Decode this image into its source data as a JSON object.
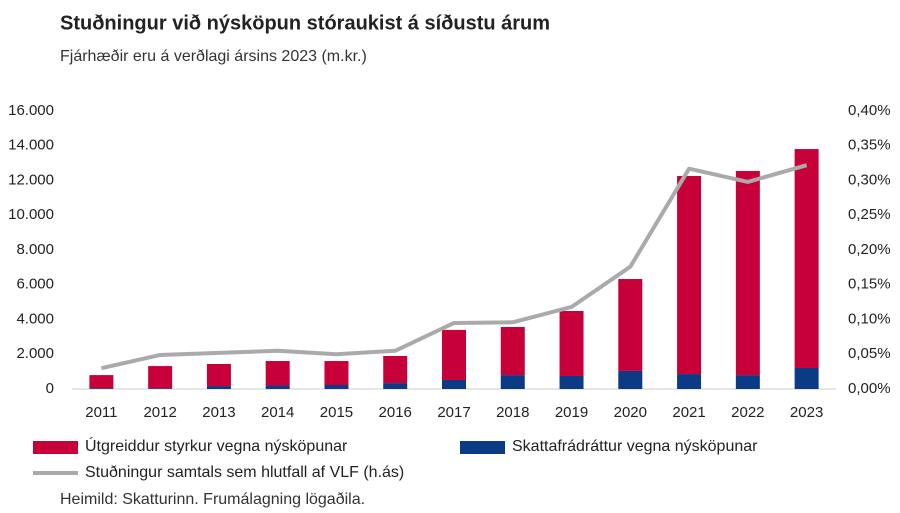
{
  "chart_data": {
    "type": "bar",
    "title": "Stuðningur við nýsköpun stóraukist á síðustu árum",
    "subtitle": "Fjárhæðir eru á verðlagi ársins 2023 (m.kr.)",
    "source": "Heimild: Skatturinn. Frumálagning lögaðila.",
    "stacked": true,
    "categories": [
      "2011",
      "2012",
      "2013",
      "2014",
      "2015",
      "2016",
      "2017",
      "2018",
      "2019",
      "2020",
      "2021",
      "2022",
      "2023"
    ],
    "series": [
      {
        "name": "Útgreiddur styrkur vegna nýsköpunar",
        "type": "bar",
        "color": "#c8003a",
        "values": [
          750,
          1270,
          1270,
          1410,
          1380,
          1560,
          2880,
          2770,
          3740,
          5290,
          11400,
          11750,
          12600
        ]
      },
      {
        "name": "Skattafrádráttur vegna nýsköpunar",
        "type": "bar",
        "color": "#0b3b84",
        "values": [
          50,
          50,
          170,
          200,
          230,
          340,
          520,
          800,
          750,
          1040,
          860,
          800,
          1210
        ]
      },
      {
        "name": "Stuðningur samtals sem hlutfall af VLF (h.ás)",
        "type": "line",
        "axis": "y2",
        "color": "#aaaaaa",
        "values": [
          0.03,
          0.049,
          0.052,
          0.055,
          0.05,
          0.055,
          0.095,
          0.096,
          0.118,
          0.176,
          0.317,
          0.298,
          0.322
        ]
      }
    ],
    "ylim": [
      0,
      16000
    ],
    "yticks": [
      0,
      {
        "value": 2000,
        "label": "2.000"
      },
      {
        "value": 4000,
        "label": "4.000"
      },
      {
        "value": 6000,
        "label": "6.000"
      },
      {
        "value": 8000,
        "label": "8.000"
      },
      {
        "value": 10000,
        "label": "10.000"
      },
      {
        "value": 12000,
        "label": "12.000"
      },
      {
        "value": 14000,
        "label": "14.000"
      },
      {
        "value": 16000,
        "label": "16.000"
      }
    ],
    "y2lim": [
      0,
      0.4
    ],
    "y2ticks": [
      {
        "value": 0,
        "label": "0,00%"
      },
      {
        "value": 0.05,
        "label": "0,05%"
      },
      {
        "value": 0.1,
        "label": "0,10%"
      },
      {
        "value": 0.15,
        "label": "0,15%"
      },
      {
        "value": 0.2,
        "label": "0,20%"
      },
      {
        "value": 0.25,
        "label": "0,25%"
      },
      {
        "value": 0.3,
        "label": "0,30%"
      },
      {
        "value": 0.35,
        "label": "0,35%"
      },
      {
        "value": 0.4,
        "label": "0,40%"
      }
    ],
    "grid": false
  }
}
